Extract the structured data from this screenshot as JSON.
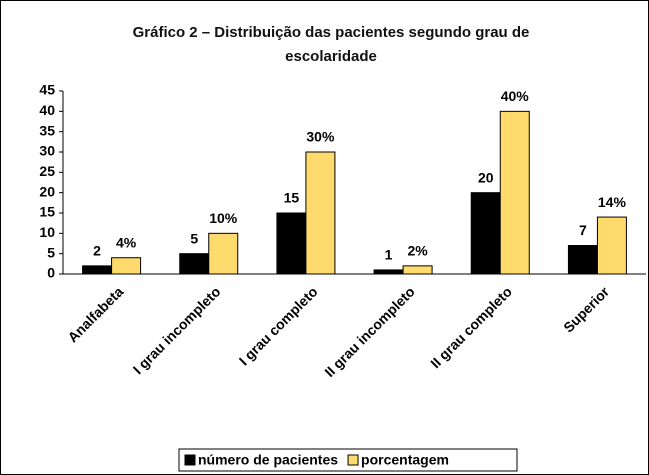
{
  "chart_data": {
    "type": "bar",
    "title": "Gráfico 2 – Distribuição das pacientes segundo grau de escolaridade",
    "categories": [
      "Analfabeta",
      "I grau incompleto",
      "I grau completo",
      "II grau incompleto",
      "II grau completo",
      "Superior"
    ],
    "series": [
      {
        "name": "número de pacientes",
        "color": "#000000",
        "values": [
          2,
          5,
          15,
          1,
          20,
          7
        ]
      },
      {
        "name": "porcentagem",
        "color": "#ffdb6e",
        "values": [
          4,
          10,
          30,
          2,
          40,
          14
        ],
        "value_labels": [
          "4%",
          "10%",
          "30%",
          "2%",
          "40%",
          "14%"
        ]
      }
    ],
    "ylim": [
      0,
      45
    ],
    "yticks": [
      0,
      5,
      10,
      15,
      20,
      25,
      30,
      35,
      40,
      45
    ],
    "grid": false,
    "legend": "bottom"
  }
}
